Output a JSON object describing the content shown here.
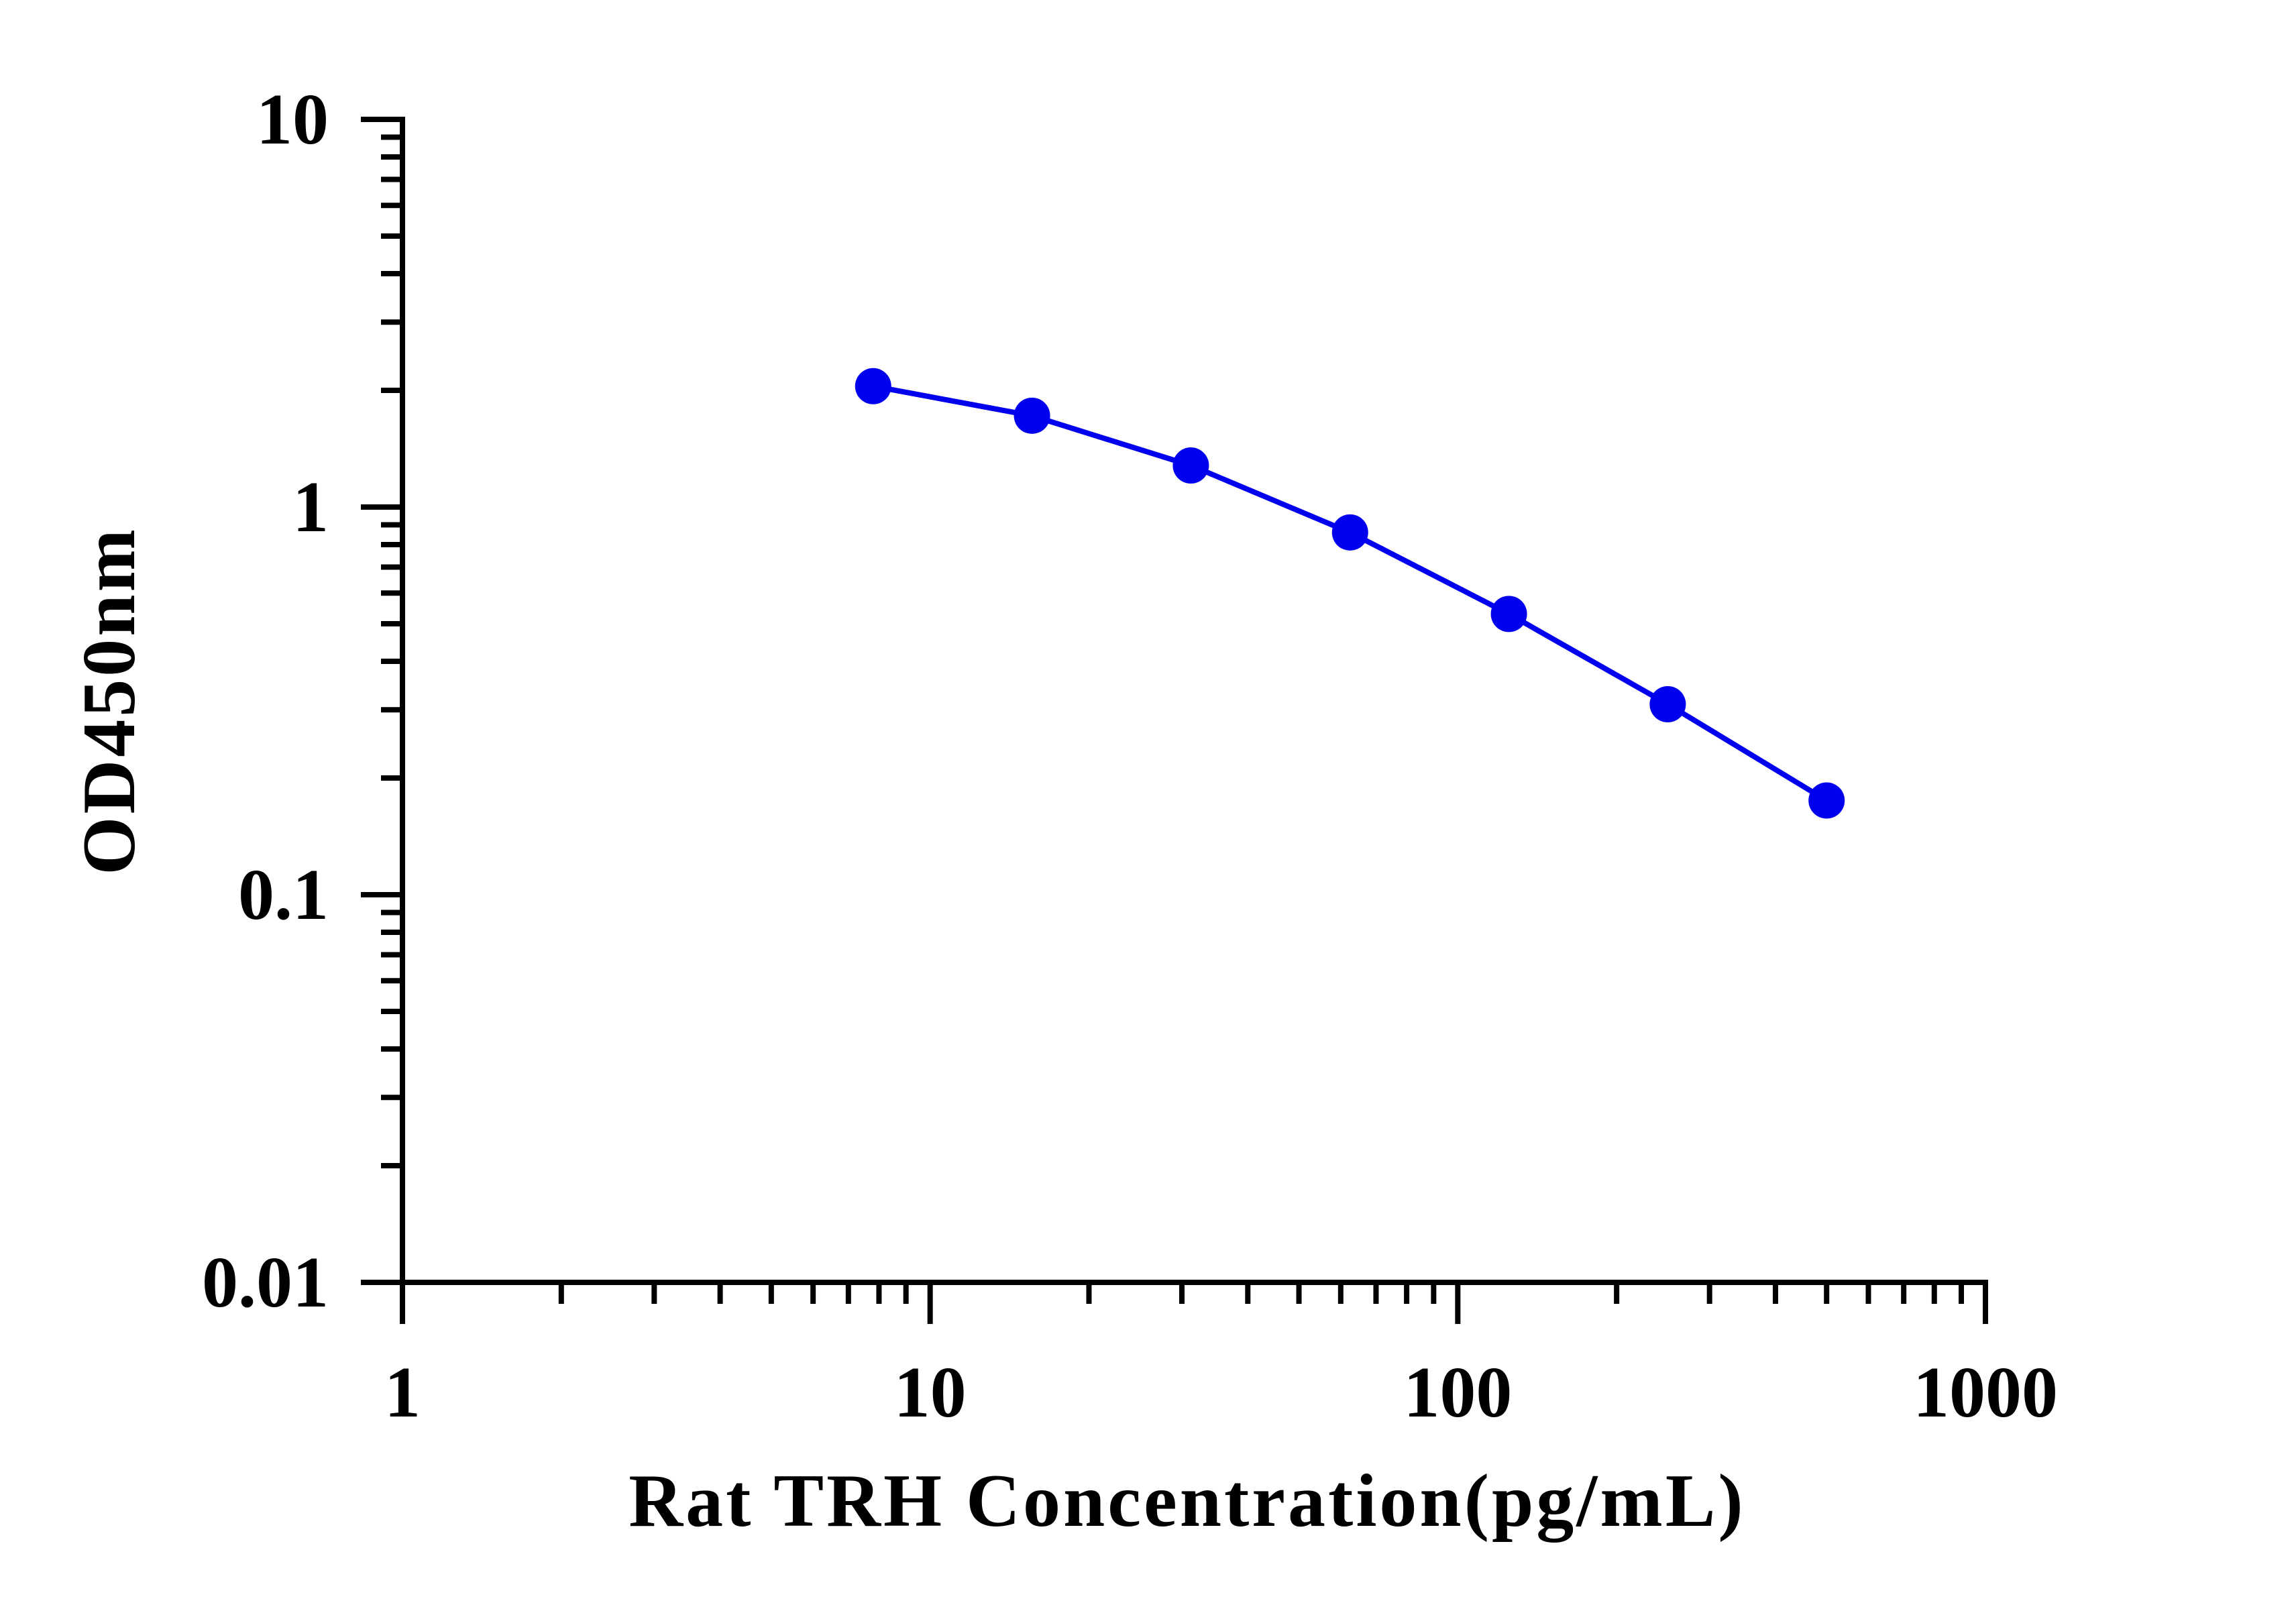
{
  "chart_data": {
    "type": "line",
    "title": "",
    "xlabel": "Rat TRH Concentration(pg/mL)",
    "ylabel": "OD450nm",
    "x_scale": "log",
    "y_scale": "log",
    "xlim": [
      1,
      1000
    ],
    "ylim": [
      0.01,
      10
    ],
    "x_ticks": [
      "1",
      "10",
      "100",
      "1000"
    ],
    "y_ticks": [
      "0.01",
      "0.1",
      "1",
      "10"
    ],
    "grid": false,
    "legend": "none",
    "series": [
      {
        "color": "#0000ee",
        "marker": "circle",
        "x": [
          7.8,
          15.6,
          31.2,
          62.5,
          125,
          250,
          500
        ],
        "y": [
          2.05,
          1.72,
          1.28,
          0.86,
          0.53,
          0.31,
          0.175
        ]
      }
    ]
  }
}
